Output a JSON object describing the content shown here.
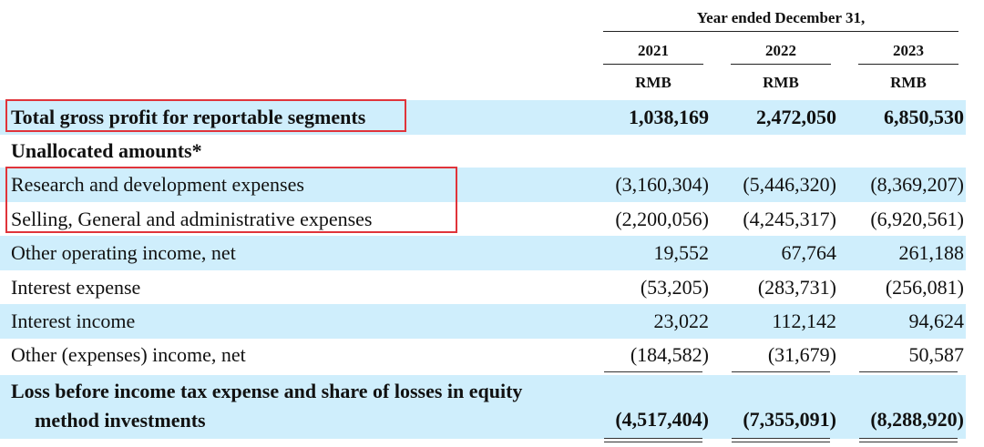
{
  "header": {
    "period": "Year ended December 31,",
    "years": [
      "2021",
      "2022",
      "2023"
    ],
    "currency": [
      "RMB",
      "RMB",
      "RMB"
    ]
  },
  "rows": [
    {
      "label": "Total gross profit for reportable segments",
      "values": [
        "1,038,169",
        "2,472,050",
        "6,850,530"
      ]
    },
    {
      "label": "Unallocated amounts*"
    },
    {
      "label": "Research and development expenses",
      "values": [
        "(3,160,304)",
        "(5,446,320)",
        "(8,369,207)"
      ]
    },
    {
      "label": "Selling, General and administrative expenses",
      "values": [
        "(2,200,056)",
        "(4,245,317)",
        "(6,920,561)"
      ]
    },
    {
      "label": "Other operating income, net",
      "values": [
        "19,552",
        "67,764",
        "261,188"
      ]
    },
    {
      "label": "Interest expense",
      "values": [
        "(53,205)",
        "(283,731)",
        "(256,081)"
      ]
    },
    {
      "label": "Interest income",
      "values": [
        "23,022",
        "112,142",
        "94,624"
      ]
    },
    {
      "label": "Other (expenses) income, net",
      "values": [
        "(184,582)",
        "(31,679)",
        "50,587"
      ]
    }
  ],
  "total": {
    "label_line1": "Loss before income tax expense and share of losses in equity",
    "label_line2": "method investments",
    "values": [
      "(4,517,404)",
      "(7,355,091)",
      "(8,288,920)"
    ]
  },
  "highlight_color": "#e0343a",
  "shade_color": "#cfeefc"
}
